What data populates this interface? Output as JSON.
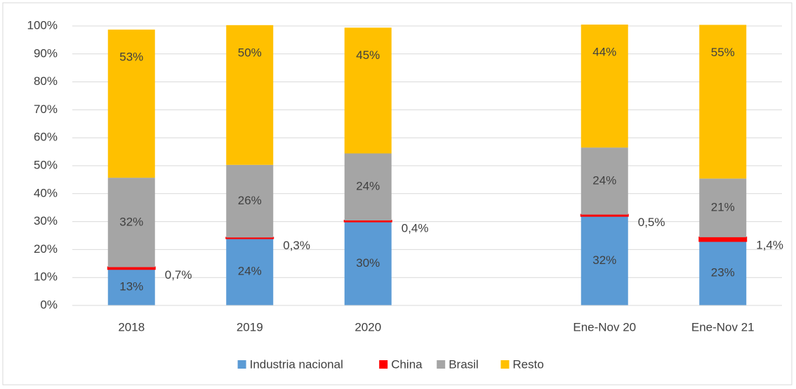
{
  "chart_data": {
    "type": "stacked_bar",
    "categories": [
      "2018",
      "2019",
      "2020",
      null,
      "Ene-Nov 20",
      "Ene-Nov 21"
    ],
    "series": [
      {
        "name": "Industria nacional",
        "color": "#5b9bd5",
        "values": [
          13,
          24,
          30,
          null,
          32,
          23
        ],
        "value_labels": [
          "13%",
          "24%",
          "30%",
          null,
          "32%",
          "23%"
        ]
      },
      {
        "name": "China",
        "color": "#ff0000",
        "values": [
          0.7,
          0.3,
          0.4,
          null,
          0.5,
          1.4
        ],
        "value_labels": [
          "0,7%",
          "0,3%",
          "0,4%",
          null,
          "0,5%",
          "1,4%"
        ]
      },
      {
        "name": "Brasil",
        "color": "#a5a5a5",
        "values": [
          32,
          26,
          24,
          null,
          24,
          21
        ],
        "value_labels": [
          "32%",
          "26%",
          "24%",
          null,
          "24%",
          "21%"
        ]
      },
      {
        "name": "Resto",
        "color": "#ffc000",
        "values": [
          53,
          50,
          45,
          null,
          44,
          55
        ],
        "value_labels": [
          "53%",
          "50%",
          "45%",
          null,
          "44%",
          "55%"
        ]
      }
    ],
    "ylim": [
      0,
      100
    ],
    "yticks": [
      {
        "value": 0,
        "label": "0%"
      },
      {
        "value": 10,
        "label": "10%"
      },
      {
        "value": 20,
        "label": "20%"
      },
      {
        "value": 30,
        "label": "30%"
      },
      {
        "value": 40,
        "label": "40%"
      },
      {
        "value": 50,
        "label": "50%"
      },
      {
        "value": 60,
        "label": "60%"
      },
      {
        "value": 70,
        "label": "70%"
      },
      {
        "value": 80,
        "label": "80%"
      },
      {
        "value": 90,
        "label": "90%"
      },
      {
        "value": 100,
        "label": "100%"
      }
    ],
    "grid": true,
    "legend": "bottom"
  }
}
